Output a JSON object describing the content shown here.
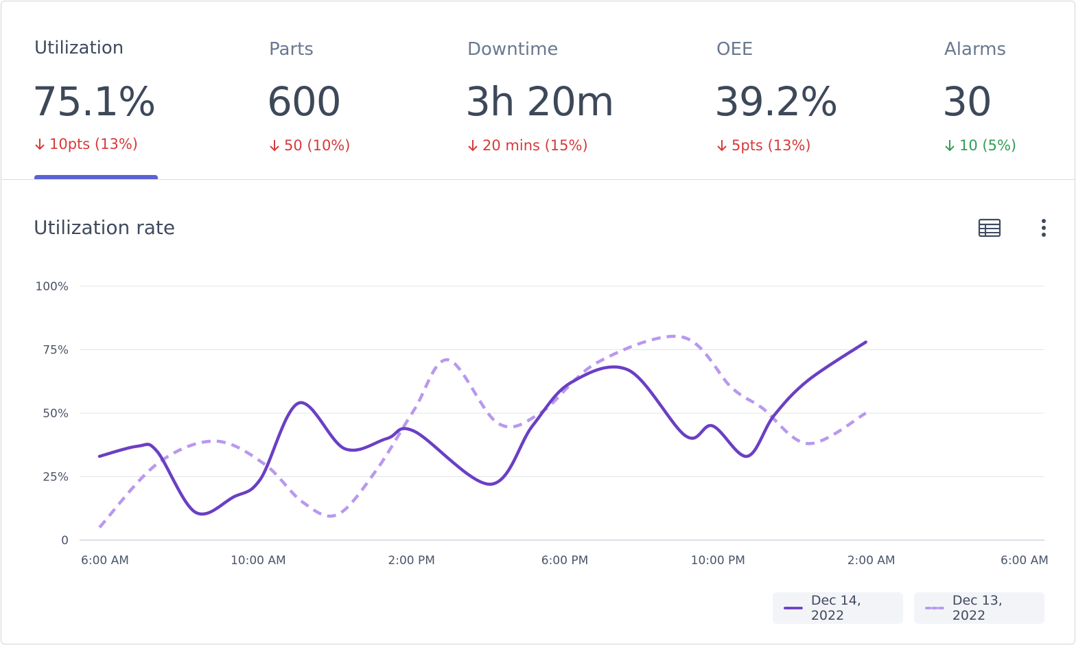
{
  "kpis": [
    {
      "label": "Utilization",
      "value": "75.1%",
      "delta": "10pts (13%)",
      "direction": "down",
      "tone": "red",
      "active": true
    },
    {
      "label": "Parts",
      "value": "600",
      "delta": "50 (10%)",
      "direction": "down",
      "tone": "red",
      "active": false
    },
    {
      "label": "Downtime",
      "value": "3h 20m",
      "delta": "20 mins (15%)",
      "direction": "down",
      "tone": "red",
      "active": false
    },
    {
      "label": "OEE",
      "value": "39.2%",
      "delta": "5pts (13%)",
      "direction": "down",
      "tone": "red",
      "active": false
    },
    {
      "label": "Alarms",
      "value": "30",
      "delta": "10 (5%)",
      "direction": "down",
      "tone": "green",
      "active": false
    }
  ],
  "chart_header": {
    "title": "Utilization rate",
    "table_icon": "table-icon",
    "more_icon": "more-vertical-icon"
  },
  "colors": {
    "accent": "#5b62d6",
    "series_primary": "#6a3fc4",
    "series_secondary": "#b998ef",
    "negative": "#d63a3a",
    "positive": "#2f9e55"
  },
  "chart_data": {
    "type": "line",
    "title": "Utilization rate",
    "xlabel": "",
    "ylabel": "",
    "x_ticks": [
      "6:00 AM",
      "10:00 AM",
      "2:00 PM",
      "6:00 PM",
      "10:00 PM",
      "2:00 AM",
      "6:00 AM"
    ],
    "y_ticks": [
      "0",
      "25%",
      "50%",
      "75%",
      "100%"
    ],
    "ylim": [
      0,
      100
    ],
    "x_unit": "hours since 6:00 AM",
    "xlim": [
      0,
      24
    ],
    "grid": true,
    "legend_position": "bottom-right",
    "series": [
      {
        "name": "Dec 14, 2022",
        "style": "solid",
        "color": "#6a3fc4",
        "points": [
          [
            0,
            33
          ],
          [
            1,
            37
          ],
          [
            1.5,
            35
          ],
          [
            2.5,
            11
          ],
          [
            3.5,
            17
          ],
          [
            4.2,
            24
          ],
          [
            5.2,
            54
          ],
          [
            6.4,
            36
          ],
          [
            7.5,
            40
          ],
          [
            8.2,
            43
          ],
          [
            10.2,
            22
          ],
          [
            11.3,
            45
          ],
          [
            12.3,
            62
          ],
          [
            13.8,
            67
          ],
          [
            15.3,
            41
          ],
          [
            16,
            45
          ],
          [
            16.9,
            33
          ],
          [
            17.6,
            49
          ],
          [
            18.5,
            63
          ],
          [
            20,
            78
          ]
        ]
      },
      {
        "name": "Dec 13, 2022",
        "style": "dashed",
        "color": "#b998ef",
        "points": [
          [
            0,
            5
          ],
          [
            1.5,
            30
          ],
          [
            3,
            39
          ],
          [
            4.3,
            30
          ],
          [
            5.3,
            15
          ],
          [
            6.2,
            10
          ],
          [
            7.2,
            27
          ],
          [
            8.2,
            51
          ],
          [
            9.1,
            71
          ],
          [
            10.4,
            46
          ],
          [
            11.5,
            50
          ],
          [
            13,
            70
          ],
          [
            15.2,
            80
          ],
          [
            16.5,
            60
          ],
          [
            17.3,
            52
          ],
          [
            18.5,
            38
          ],
          [
            20,
            50
          ]
        ]
      }
    ]
  },
  "legend": [
    {
      "label": "Dec 14, 2022",
      "style": "solid"
    },
    {
      "label": "Dec 13, 2022",
      "style": "dashed"
    }
  ]
}
